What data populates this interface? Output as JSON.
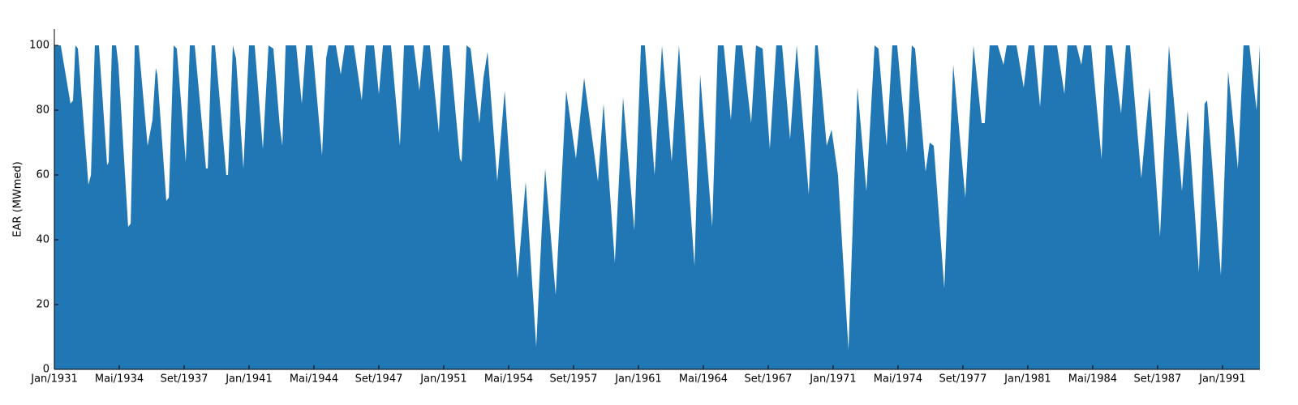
{
  "chart_data": {
    "type": "area",
    "y_label": "EAR (MWmed)",
    "color": "#2077b4",
    "xlim": [
      1931,
      1992.92
    ],
    "ylim": [
      0,
      105
    ],
    "xticks": [
      {
        "value": 1931,
        "label": "Jan/1931"
      },
      {
        "value": 1934.3333,
        "label": "Mai/1934"
      },
      {
        "value": 1937.6667,
        "label": "Set/1937"
      },
      {
        "value": 1941,
        "label": "Jan/1941"
      },
      {
        "value": 1944.3333,
        "label": "Mai/1944"
      },
      {
        "value": 1947.6667,
        "label": "Set/1947"
      },
      {
        "value": 1951,
        "label": "Jan/1951"
      },
      {
        "value": 1954.3333,
        "label": "Mai/1954"
      },
      {
        "value": 1957.6667,
        "label": "Set/1957"
      },
      {
        "value": 1961,
        "label": "Jan/1961"
      },
      {
        "value": 1964.3333,
        "label": "Mai/1964"
      },
      {
        "value": 1967.6667,
        "label": "Set/1967"
      },
      {
        "value": 1971,
        "label": "Jan/1971"
      },
      {
        "value": 1974.3333,
        "label": "Mai/1974"
      },
      {
        "value": 1977.6667,
        "label": "Set/1977"
      },
      {
        "value": 1981,
        "label": "Jan/1981"
      },
      {
        "value": 1984.3333,
        "label": "Mai/1984"
      },
      {
        "value": 1987.6667,
        "label": "Set/1987"
      },
      {
        "value": 1991,
        "label": "Jan/1991"
      }
    ],
    "yticks": [
      0,
      20,
      40,
      60,
      80,
      100
    ],
    "x": [
      1931.0,
      1931.33,
      1931.83,
      1931.96,
      1932.08,
      1932.21,
      1932.75,
      1932.88,
      1933.08,
      1933.29,
      1933.71,
      1933.79,
      1933.96,
      1934.17,
      1934.29,
      1934.79,
      1934.92,
      1935.13,
      1935.33,
      1935.79,
      1936.04,
      1936.21,
      1936.29,
      1936.75,
      1936.88,
      1937.13,
      1937.29,
      1937.75,
      1937.96,
      1938.21,
      1938.79,
      1938.88,
      1939.08,
      1939.25,
      1939.67,
      1939.83,
      1939.92,
      1940.17,
      1940.33,
      1940.71,
      1941.0,
      1941.29,
      1941.71,
      1942.0,
      1942.25,
      1942.58,
      1942.71,
      1942.88,
      1943.42,
      1943.71,
      1943.92,
      1944.25,
      1944.75,
      1944.96,
      1945.08,
      1945.46,
      1945.71,
      1945.92,
      1946.38,
      1946.79,
      1947.0,
      1947.42,
      1947.67,
      1947.88,
      1948.29,
      1948.75,
      1948.96,
      1949.46,
      1949.75,
      1949.96,
      1950.29,
      1950.75,
      1950.96,
      1951.29,
      1951.83,
      1951.92,
      1952.17,
      1952.38,
      1952.83,
      1953.04,
      1953.25,
      1953.75,
      1954.13,
      1954.79,
      1955.21,
      1955.75,
      1956.04,
      1956.21,
      1956.75,
      1957.29,
      1957.79,
      1958.21,
      1958.92,
      1959.21,
      1959.79,
      1960.21,
      1960.79,
      1961.13,
      1961.33,
      1961.83,
      1962.21,
      1962.71,
      1963.08,
      1963.88,
      1964.17,
      1964.79,
      1965.08,
      1965.38,
      1965.75,
      1966.0,
      1966.33,
      1966.79,
      1967.04,
      1967.38,
      1967.75,
      1968.08,
      1968.38,
      1968.79,
      1969.13,
      1969.75,
      1970.08,
      1970.21,
      1970.67,
      1970.92,
      1971.25,
      1971.79,
      1972.25,
      1972.71,
      1973.13,
      1973.33,
      1973.75,
      1974.04,
      1974.29,
      1974.79,
      1975.04,
      1975.21,
      1975.75,
      1975.96,
      1976.17,
      1976.71,
      1977.17,
      1977.79,
      1978.21,
      1978.63,
      1978.79,
      1979.04,
      1979.46,
      1979.75,
      1979.92,
      1980.42,
      1980.79,
      1981.04,
      1981.33,
      1981.63,
      1981.83,
      1982.5,
      1982.88,
      1983.04,
      1983.5,
      1983.75,
      1983.88,
      1984.25,
      1984.79,
      1985.0,
      1985.33,
      1985.79,
      1986.04,
      1986.25,
      1986.83,
      1987.25,
      1987.79,
      1988.25,
      1988.92,
      1989.21,
      1989.79,
      1990.08,
      1990.21,
      1990.92,
      1991.29,
      1991.79,
      1992.08,
      1992.38,
      1992.75,
      1992.92
    ],
    "values": [
      100,
      100,
      82,
      83,
      100,
      99,
      57,
      60,
      100,
      100,
      63,
      64,
      100,
      100,
      94,
      44,
      45,
      100,
      100,
      69,
      77,
      93,
      91,
      52,
      53,
      100,
      99,
      64,
      100,
      100,
      62,
      62,
      100,
      100,
      71,
      60,
      60,
      100,
      96,
      62,
      100,
      100,
      68,
      100,
      99,
      75,
      69,
      100,
      100,
      82,
      100,
      100,
      66,
      96,
      100,
      100,
      91,
      100,
      100,
      83,
      100,
      100,
      85,
      100,
      100,
      69,
      100,
      100,
      86,
      100,
      100,
      73,
      100,
      100,
      65,
      64,
      100,
      99,
      76,
      90,
      98,
      58,
      86,
      28,
      58,
      7,
      44,
      62,
      23,
      86,
      65,
      90,
      58,
      82,
      33,
      84,
      43,
      100,
      100,
      60,
      100,
      64,
      100,
      32,
      91,
      44,
      100,
      100,
      77,
      100,
      100,
      76,
      100,
      99,
      68,
      100,
      100,
      71,
      100,
      54,
      100,
      100,
      69,
      74,
      60,
      6,
      87,
      55,
      100,
      99,
      69,
      100,
      100,
      67,
      100,
      99,
      61,
      70,
      69,
      25,
      94,
      53,
      100,
      76,
      76,
      100,
      100,
      94,
      100,
      100,
      87,
      100,
      100,
      81,
      100,
      100,
      85,
      100,
      100,
      94,
      100,
      100,
      65,
      100,
      100,
      79,
      100,
      100,
      59,
      87,
      41,
      100,
      55,
      80,
      30,
      82,
      83,
      29,
      92,
      62,
      100,
      100,
      80,
      100
    ]
  }
}
